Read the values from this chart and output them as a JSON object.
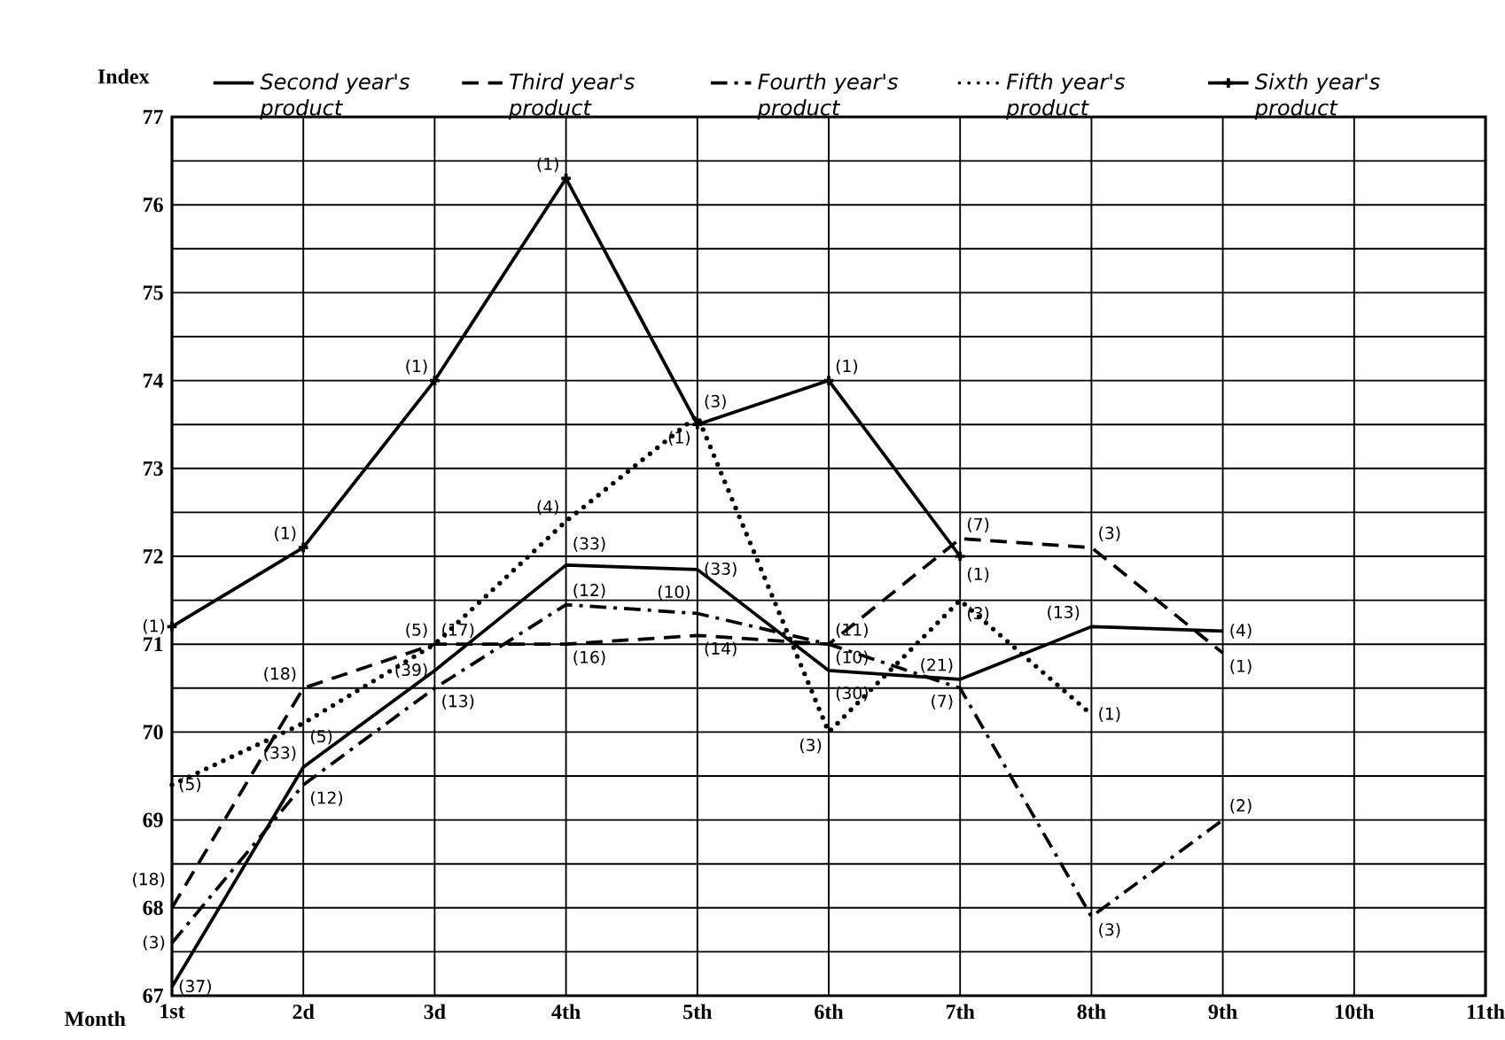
{
  "chart_data": {
    "type": "line",
    "ylabel": "Index",
    "xlabel": "Month",
    "categories": [
      "1st",
      "2d",
      "3d",
      "4th",
      "5th",
      "6th",
      "7th",
      "8th",
      "9th",
      "10th",
      "11th"
    ],
    "ylim": [
      67,
      77
    ],
    "yticks": [
      67,
      {
        "value": 67.5,
        "label": null
      },
      68,
      {
        "value": 68.5,
        "label": null
      },
      69,
      {
        "value": 69.5,
        "label": null
      },
      70,
      {
        "value": 70.5,
        "label": null
      },
      71,
      {
        "value": 71.5,
        "label": null
      },
      72,
      {
        "value": 72.5,
        "label": null
      },
      73,
      {
        "value": 73.5,
        "label": null
      },
      74,
      {
        "value": 74.5,
        "label": null
      },
      75,
      {
        "value": 75.5,
        "label": null
      },
      76,
      {
        "value": 76.5,
        "label": null
      },
      77
    ],
    "grid": true,
    "legend": "top",
    "marker": "none",
    "series": [
      {
        "name": "Second year's product",
        "color": "#000000",
        "line_style": "solid",
        "values": [
          67.1,
          69.6,
          70.7,
          71.9,
          71.85,
          70.7,
          70.6,
          71.2,
          71.15,
          null,
          null
        ]
      },
      {
        "name": "Third year's product",
        "color": "#000000",
        "line_style": "dashed",
        "values": [
          68.0,
          70.5,
          71.0,
          71.0,
          71.1,
          71.0,
          72.2,
          72.1,
          70.9,
          null,
          null
        ]
      },
      {
        "name": "Fourth year's product",
        "color": "#000000",
        "line_style": "dashdot",
        "values": [
          67.6,
          69.4,
          70.5,
          71.45,
          71.35,
          71.0,
          70.5,
          67.9,
          69.0,
          null,
          null
        ]
      },
      {
        "name": "Fifth year's product",
        "color": "#000000",
        "line_style": "dotted",
        "values": [
          69.4,
          70.1,
          71.0,
          72.4,
          73.6,
          70.0,
          71.5,
          70.2,
          null,
          null,
          null
        ]
      },
      {
        "name": "Sixth year's product",
        "color": "#000000",
        "line_style": "solid",
        "marker": "cross",
        "values": [
          71.2,
          72.1,
          74.0,
          76.3,
          73.5,
          74.0,
          72.0,
          null,
          null,
          null,
          null
        ]
      }
    ],
    "annotations": [
      {
        "text": "(37)",
        "x": "1st",
        "y": 67.1
      },
      {
        "text": "(33)",
        "x": "2d",
        "y": 69.6
      },
      {
        "text": "(39)",
        "x": "3d",
        "y": 70.7
      },
      {
        "text": "(33)",
        "x": "4th",
        "y": 71.9
      },
      {
        "text": "(33)",
        "x": "5th",
        "y": 71.85
      },
      {
        "text": "(30)",
        "x": "6th",
        "y": 70.7
      },
      {
        "text": "(21)",
        "x": "7th",
        "y": 70.6
      },
      {
        "text": "(13)",
        "x": "8th",
        "y": 71.2
      },
      {
        "text": "(4)",
        "x": "9th",
        "y": 71.15
      },
      {
        "text": "(18)",
        "x": "1st",
        "y": 68.0
      },
      {
        "text": "(18)",
        "x": "2d",
        "y": 70.5
      },
      {
        "text": "(17)",
        "x": "3d",
        "y": 71.0
      },
      {
        "text": "(16)",
        "x": "4th",
        "y": 71.0
      },
      {
        "text": "(14)",
        "x": "5th",
        "y": 71.1
      },
      {
        "text": "(11)",
        "x": "6th",
        "y": 71.0
      },
      {
        "text": "(7)",
        "x": "7th",
        "y": 72.2
      },
      {
        "text": "(3)",
        "x": "8th",
        "y": 72.1
      },
      {
        "text": "(1)",
        "x": "9th",
        "y": 70.9
      },
      {
        "text": "(3)",
        "x": "1st",
        "y": 67.6
      },
      {
        "text": "(12)",
        "x": "2d",
        "y": 69.4
      },
      {
        "text": "(13)",
        "x": "3d",
        "y": 70.5
      },
      {
        "text": "(12)",
        "x": "4th",
        "y": 71.45
      },
      {
        "text": "(10)",
        "x": "5th",
        "y": 71.35
      },
      {
        "text": "(10)",
        "x": "6th",
        "y": 71.0
      },
      {
        "text": "(7)",
        "x": "7th",
        "y": 70.5
      },
      {
        "text": "(3)",
        "x": "8th",
        "y": 67.9
      },
      {
        "text": "(2)",
        "x": "9th",
        "y": 69.0
      },
      {
        "text": "(5)",
        "x": "1st",
        "y": 69.4
      },
      {
        "text": "(5)",
        "x": "2d",
        "y": 70.1
      },
      {
        "text": "(5)",
        "x": "3d",
        "y": 71.0
      },
      {
        "text": "(4)",
        "x": "4th",
        "y": 72.4
      },
      {
        "text": "(3)",
        "x": "5th",
        "y": 73.6
      },
      {
        "text": "(3)",
        "x": "6th",
        "y": 70.0
      },
      {
        "text": "(3)",
        "x": "7th",
        "y": 71.5
      },
      {
        "text": "(1)",
        "x": "8th",
        "y": 70.2
      },
      {
        "text": "(1)",
        "x": "1st",
        "y": 71.2
      },
      {
        "text": "(1)",
        "x": "2d",
        "y": 72.1
      },
      {
        "text": "(1)",
        "x": "3d",
        "y": 74.0
      },
      {
        "text": "(1)",
        "x": "4th",
        "y": 76.3
      },
      {
        "text": "(1)",
        "x": "5th",
        "y": 73.5
      },
      {
        "text": "(1)",
        "x": "6th",
        "y": 74.0
      },
      {
        "text": "(1)",
        "x": "7th",
        "y": 72.0
      }
    ]
  }
}
